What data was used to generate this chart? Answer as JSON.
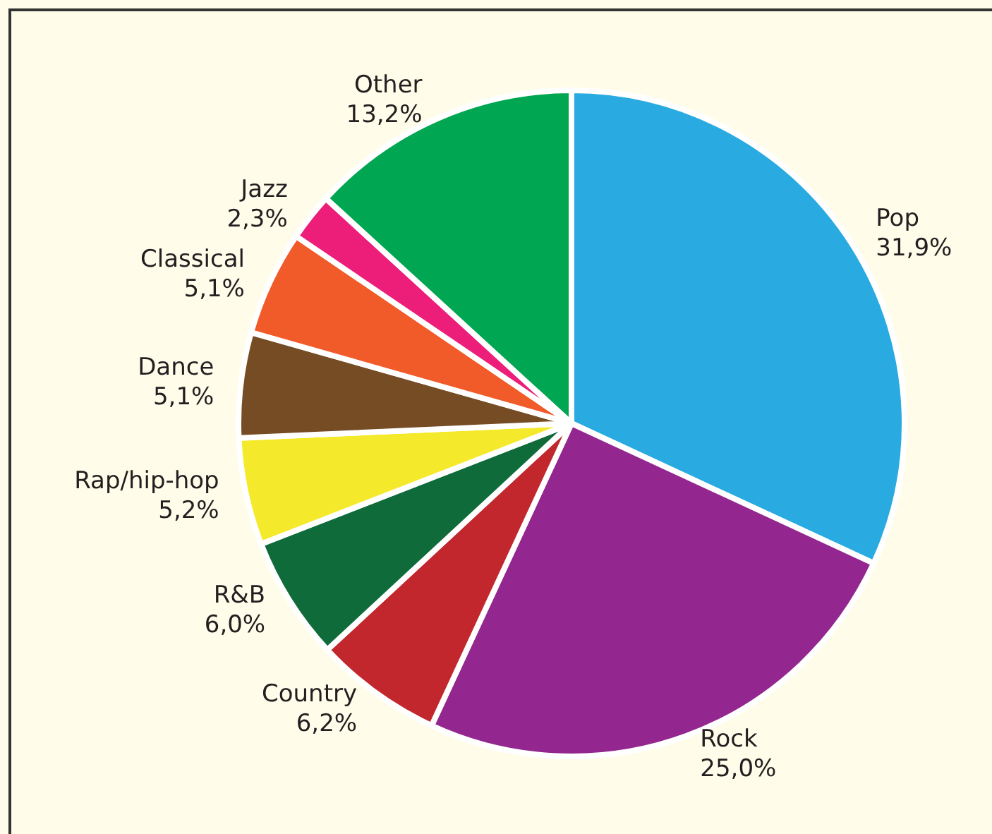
{
  "chart_data": {
    "type": "pie",
    "categories": [
      "Pop",
      "Rock",
      "Country",
      "R&B",
      "Rap/hip-hop",
      "Dance",
      "Classical",
      "Jazz",
      "Other"
    ],
    "values": [
      31.9,
      25.0,
      6.2,
      6.0,
      5.2,
      5.1,
      5.1,
      2.3,
      13.2
    ],
    "value_labels": [
      "31,9%",
      "25,0%",
      "6,2%",
      "6,0%",
      "5,2%",
      "5,1%",
      "5,1%",
      "2,3%",
      "13,2%"
    ],
    "colors": [
      "#29abe2",
      "#93278f",
      "#c1272d",
      "#0f6b3a",
      "#f5e92b",
      "#754c24",
      "#f15a29",
      "#ec1e79",
      "#00a651"
    ],
    "legend": false
  }
}
